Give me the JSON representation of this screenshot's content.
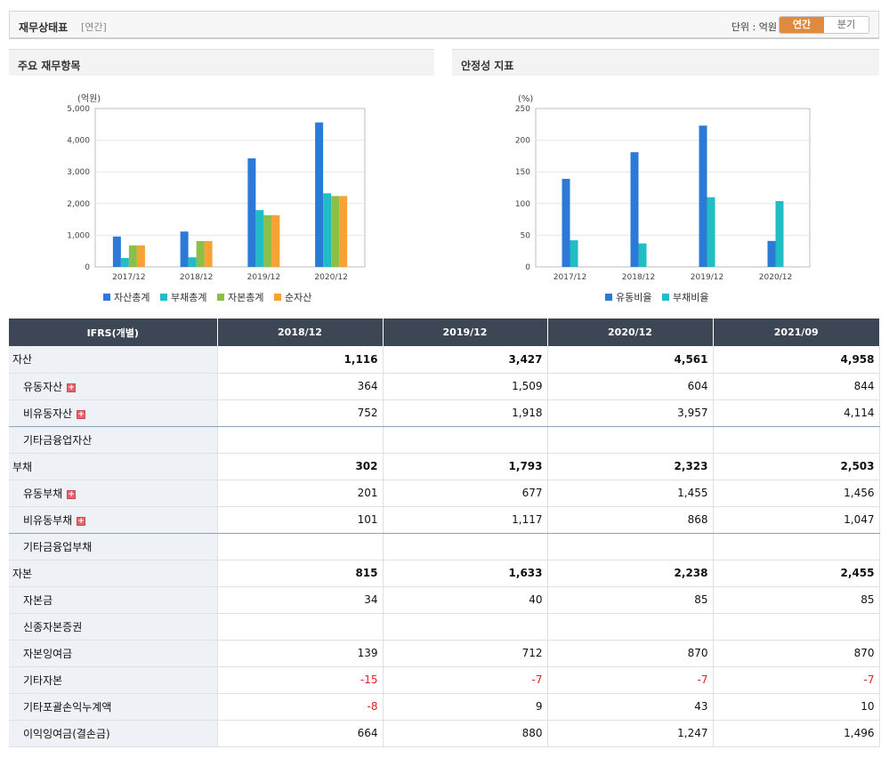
{
  "header": {
    "title": "재무상태표",
    "period_note": "[연간]",
    "unit_label": "단위 : 억원",
    "toggle_annual": "연간",
    "toggle_quarter": "분기"
  },
  "panels": {
    "left_title": "주요 재무항목",
    "right_title": "안정성 지표"
  },
  "colors": {
    "blue": "#2b7ad6",
    "teal": "#22bcc7",
    "green": "#8bbf4a",
    "orange": "#f7a235"
  },
  "chart_data": [
    {
      "type": "bar",
      "title": "주요 재무항목",
      "ylabel": "(억원)",
      "ylim": [
        0,
        5000
      ],
      "yticks": [
        "0",
        "1,000",
        "2,000",
        "3,000",
        "4,000",
        "5,000"
      ],
      "categories": [
        "2017/12",
        "2018/12",
        "2019/12",
        "2020/12"
      ],
      "series": [
        {
          "name": "자산총계",
          "color": "#2b7ad6",
          "values": [
            960,
            1116,
            3427,
            4561
          ]
        },
        {
          "name": "부채총계",
          "color": "#22bcc7",
          "values": [
            280,
            302,
            1793,
            2323
          ]
        },
        {
          "name": "자본총계",
          "color": "#8bbf4a",
          "values": [
            680,
            815,
            1633,
            2238
          ]
        },
        {
          "name": "순자산",
          "color": "#f7a235",
          "values": [
            680,
            815,
            1633,
            2238
          ]
        }
      ]
    },
    {
      "type": "bar",
      "title": "안정성 지표",
      "ylabel": "(%)",
      "ylim": [
        0,
        250
      ],
      "yticks": [
        "0",
        "50",
        "100",
        "150",
        "200",
        "250"
      ],
      "categories": [
        "2017/12",
        "2018/12",
        "2019/12",
        "2020/12"
      ],
      "series": [
        {
          "name": "유동비율",
          "color": "#2b7ad6",
          "values": [
            139,
            181,
            223,
            41
          ]
        },
        {
          "name": "부채비율",
          "color": "#22bcc7",
          "values": [
            42,
            37,
            110,
            104
          ]
        }
      ]
    }
  ],
  "table": {
    "headers": [
      "IFRS(개별)",
      "2018/12",
      "2019/12",
      "2020/12",
      "2021/09"
    ],
    "rows": [
      {
        "label": "자산",
        "major": true,
        "expand": false,
        "values": [
          "1,116",
          "3,427",
          "4,561",
          "4,958"
        ]
      },
      {
        "label": "유동자산",
        "major": false,
        "expand": true,
        "values": [
          "364",
          "1,509",
          "604",
          "844"
        ]
      },
      {
        "label": "비유동자산",
        "major": false,
        "expand": true,
        "values": [
          "752",
          "1,918",
          "3,957",
          "4,114"
        ]
      },
      {
        "label": "기타금융업자산",
        "major": false,
        "expand": false,
        "values": [
          "",
          "",
          "",
          ""
        ]
      },
      {
        "label": "부채",
        "major": true,
        "expand": false,
        "values": [
          "302",
          "1,793",
          "2,323",
          "2,503"
        ]
      },
      {
        "label": "유동부채",
        "major": false,
        "expand": true,
        "values": [
          "201",
          "677",
          "1,455",
          "1,456"
        ]
      },
      {
        "label": "비유동부채",
        "major": false,
        "expand": true,
        "values": [
          "101",
          "1,117",
          "868",
          "1,047"
        ]
      },
      {
        "label": "기타금융업부채",
        "major": false,
        "expand": false,
        "values": [
          "",
          "",
          "",
          ""
        ]
      },
      {
        "label": "자본",
        "major": true,
        "expand": false,
        "values": [
          "815",
          "1,633",
          "2,238",
          "2,455"
        ]
      },
      {
        "label": "자본금",
        "major": false,
        "expand": false,
        "values": [
          "34",
          "40",
          "85",
          "85"
        ]
      },
      {
        "label": "신종자본증권",
        "major": false,
        "expand": false,
        "values": [
          "",
          "",
          "",
          ""
        ]
      },
      {
        "label": "자본잉여금",
        "major": false,
        "expand": false,
        "values": [
          "139",
          "712",
          "870",
          "870"
        ]
      },
      {
        "label": "기타자본",
        "major": false,
        "expand": false,
        "values": [
          "-15",
          "-7",
          "-7",
          "-7"
        ]
      },
      {
        "label": "기타포괄손익누계액",
        "major": false,
        "expand": false,
        "values": [
          "-8",
          "9",
          "43",
          "10"
        ]
      },
      {
        "label": "이익잉여금(결손금)",
        "major": false,
        "expand": false,
        "values": [
          "664",
          "880",
          "1,247",
          "1,496"
        ]
      }
    ]
  }
}
